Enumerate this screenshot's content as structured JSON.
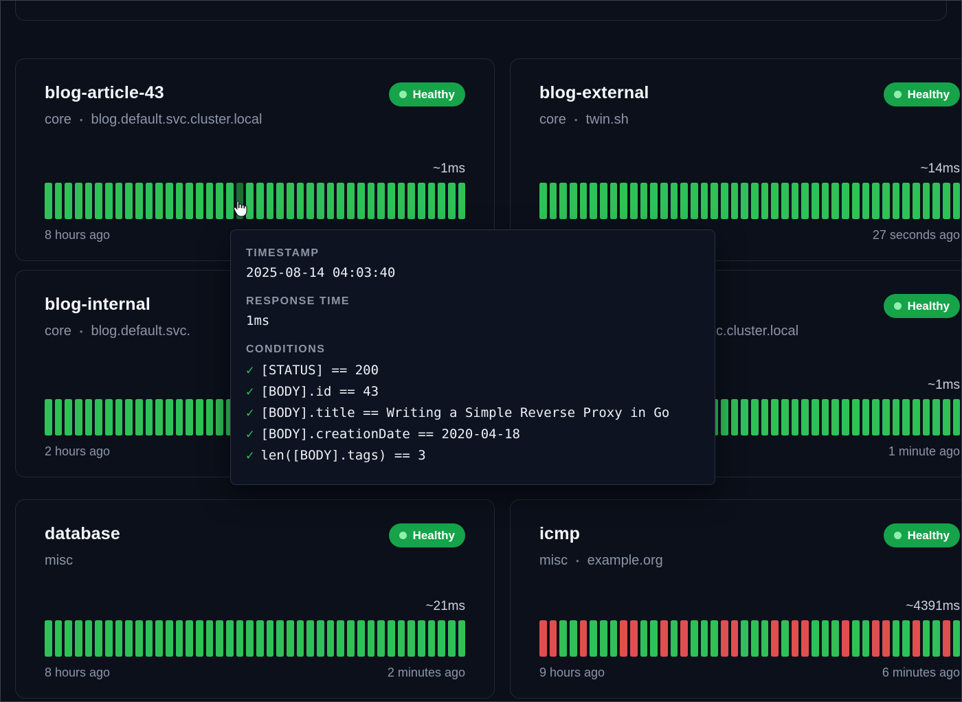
{
  "colors": {
    "badge_bg": "#16a34a",
    "badge_dot": "#8ef0ab",
    "bar_green": "#2fc157",
    "bar_red": "#df4f4f",
    "bar_hover": "#1d6d37"
  },
  "meta": {
    "separator": "•"
  },
  "cards": [
    {
      "title": "blog-article-43",
      "badge": "Healthy",
      "group": "core",
      "target": "blog.default.svc.cluster.local",
      "latency": "~1ms",
      "time_left": "8 hours ago",
      "history": "GGGGGGGGGGGGGGGGGGGHGGGGGGGGGGGGGGGGGGGGGG"
    },
    {
      "title": "blog-external",
      "badge": "Healthy",
      "group": "core",
      "target": "twin.sh",
      "latency": "~14ms",
      "time_right": "27 seconds ago",
      "history": "GGGGGGGGGGGGGGGGGGGGGGGGGGGGGGGGGGGGGGGGGG"
    },
    {
      "title": "blog-internal",
      "group": "core",
      "target": "blog.default.svc.",
      "time_left": "2 hours ago",
      "history": "GGGGGGGGGGGGGGGGGGGGGGGGGGGGGGGGGGGGGGGGGG"
    },
    {
      "badge": "Healthy",
      "target_fragment": "c.cluster.local",
      "latency": "~1ms",
      "time_right": "1 minute ago",
      "history": "GGGGGGGGGGGGGGGGGGGGGGGGGGGGGGGGGGGGGGGGGG"
    },
    {
      "title": "database",
      "badge": "Healthy",
      "group": "misc",
      "latency": "~21ms",
      "time_left": "8 hours ago",
      "time_right": "2 minutes ago",
      "history": "GGGGGGGGGGGGGGGGGGGGGGGGGGGGGGGGGGGGGGGGGG"
    },
    {
      "title": "icmp",
      "badge": "Healthy",
      "group": "misc",
      "target": "example.org",
      "latency": "~4391ms",
      "time_left": "9 hours ago",
      "time_right": "6 minutes ago",
      "history": "RRGGRGGGRRGGRGRGGGRRGGGRGRRGGGRGGRRGGRGGRG"
    }
  ],
  "tooltip": {
    "timestamp_label": "TIMESTAMP",
    "timestamp": "2025-08-14 04:03:40",
    "response_label": "RESPONSE TIME",
    "response": "1ms",
    "conditions_label": "CONDITIONS",
    "check": "✓",
    "conditions": [
      "[STATUS] == 200",
      "[BODY].id == 43",
      "[BODY].title == Writing a Simple Reverse Proxy in Go",
      "[BODY].creationDate == 2020-04-18",
      "len([BODY].tags) == 3"
    ]
  }
}
